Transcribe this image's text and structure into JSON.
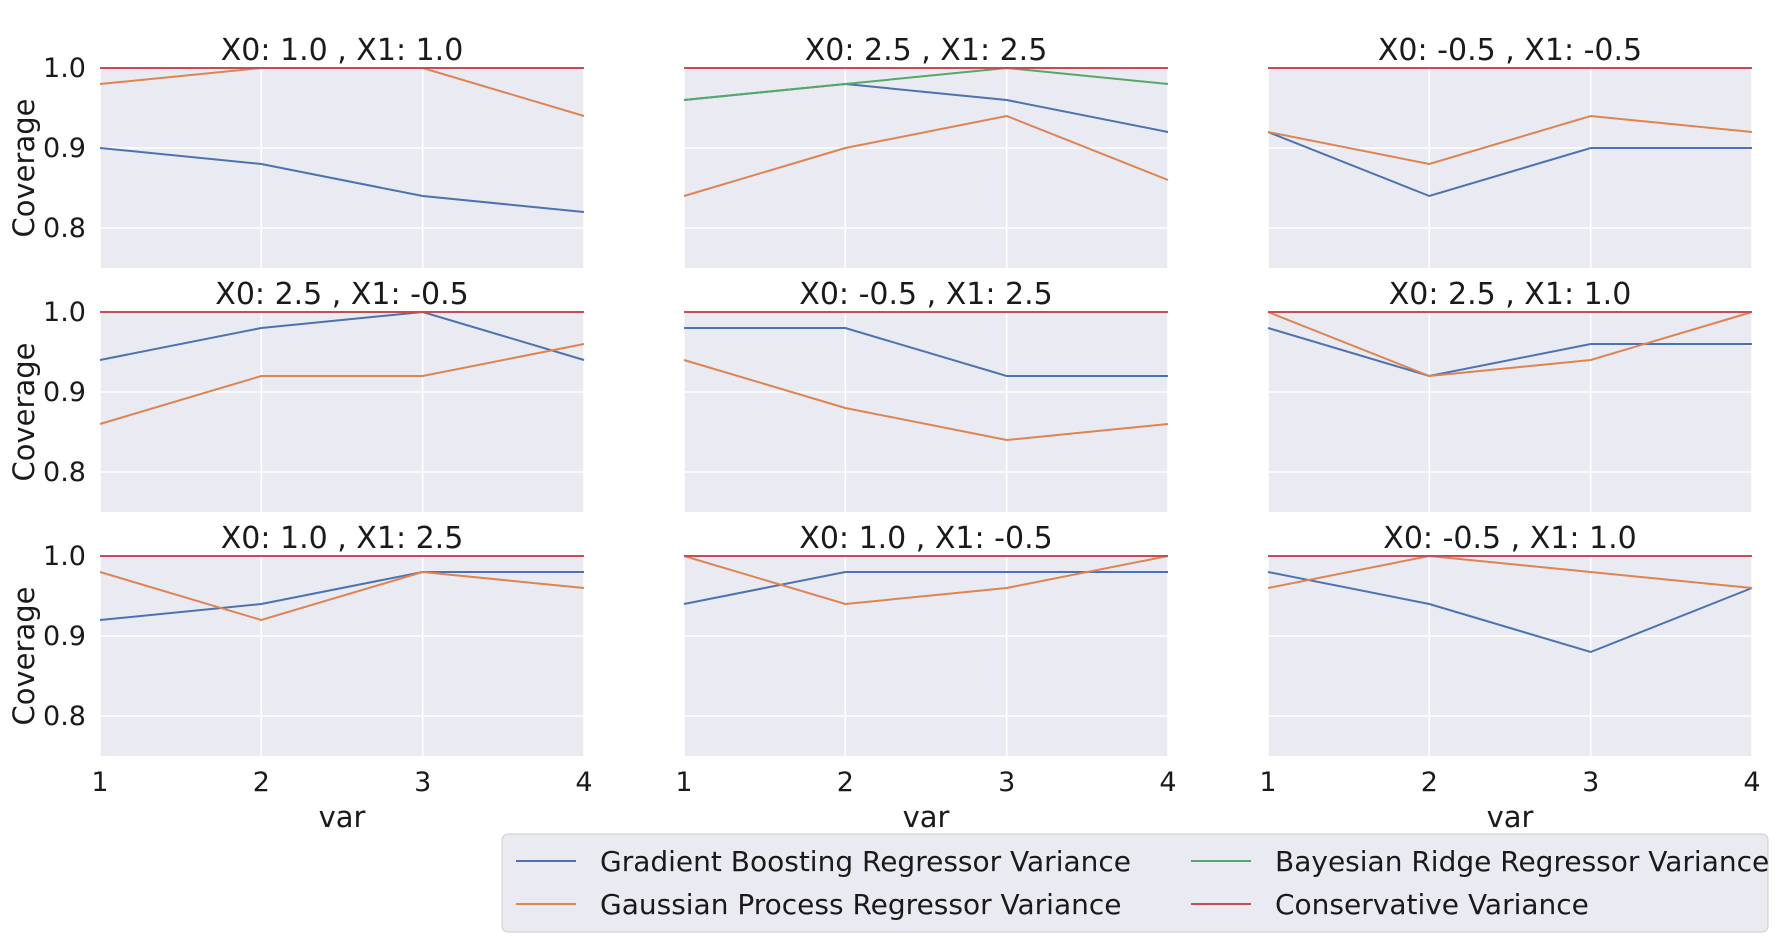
{
  "chart_data": {
    "type": "line",
    "x": [
      1,
      2,
      3,
      4
    ],
    "xlabel": "var",
    "ylabel": "Coverage",
    "ylim": [
      0.75,
      1.0
    ],
    "yticks": [
      "0.8",
      "0.9",
      "1.0"
    ],
    "xticks": [
      "1",
      "2",
      "3",
      "4"
    ],
    "grid": true,
    "legend_position": "bottom-right",
    "legend": [
      {
        "name": "Gradient Boosting Regressor Variance",
        "color": "#4c72b0"
      },
      {
        "name": "Gaussian Process Regressor Variance",
        "color": "#dd8452"
      },
      {
        "name": "Bayesian Ridge Regressor Variance",
        "color": "#55a868"
      },
      {
        "name": "Conservative Variance",
        "color": "#c44e52"
      }
    ],
    "panels": [
      {
        "title": "X0:  1.0 , X1:  1.0",
        "series": [
          {
            "name": "Gradient Boosting Regressor Variance",
            "values": [
              0.9,
              0.88,
              0.84,
              0.82
            ]
          },
          {
            "name": "Gaussian Process Regressor Variance",
            "values": [
              0.98,
              1.0,
              1.0,
              0.94
            ]
          },
          {
            "name": "Bayesian Ridge Regressor Variance",
            "values": [
              1.0,
              1.0,
              1.0,
              1.0
            ]
          },
          {
            "name": "Conservative Variance",
            "values": [
              1.0,
              1.0,
              1.0,
              1.0
            ]
          }
        ]
      },
      {
        "title": "X0:  2.5 , X1:  2.5",
        "series": [
          {
            "name": "Gradient Boosting Regressor Variance",
            "values": [
              0.96,
              0.98,
              0.96,
              0.92
            ]
          },
          {
            "name": "Gaussian Process Regressor Variance",
            "values": [
              0.84,
              0.9,
              0.94,
              0.86
            ]
          },
          {
            "name": "Bayesian Ridge Regressor Variance",
            "values": [
              0.96,
              0.98,
              1.0,
              0.98
            ]
          },
          {
            "name": "Conservative Variance",
            "values": [
              1.0,
              1.0,
              1.0,
              1.0
            ]
          }
        ]
      },
      {
        "title": "X0: -0.5 , X1: -0.5",
        "series": [
          {
            "name": "Gradient Boosting Regressor Variance",
            "values": [
              0.92,
              0.84,
              0.9,
              0.9
            ]
          },
          {
            "name": "Gaussian Process Regressor Variance",
            "values": [
              0.92,
              0.88,
              0.94,
              0.92
            ]
          },
          {
            "name": "Bayesian Ridge Regressor Variance",
            "values": [
              1.0,
              1.0,
              1.0,
              1.0
            ]
          },
          {
            "name": "Conservative Variance",
            "values": [
              1.0,
              1.0,
              1.0,
              1.0
            ]
          }
        ]
      },
      {
        "title": "X0:  2.5 , X1: -0.5",
        "series": [
          {
            "name": "Gradient Boosting Regressor Variance",
            "values": [
              0.94,
              0.98,
              1.0,
              0.94
            ]
          },
          {
            "name": "Gaussian Process Regressor Variance",
            "values": [
              0.86,
              0.92,
              0.92,
              0.96
            ]
          },
          {
            "name": "Bayesian Ridge Regressor Variance",
            "values": [
              1.0,
              1.0,
              1.0,
              1.0
            ]
          },
          {
            "name": "Conservative Variance",
            "values": [
              1.0,
              1.0,
              1.0,
              1.0
            ]
          }
        ]
      },
      {
        "title": "X0: -0.5 , X1:  2.5",
        "series": [
          {
            "name": "Gradient Boosting Regressor Variance",
            "values": [
              0.98,
              0.98,
              0.92,
              0.92
            ]
          },
          {
            "name": "Gaussian Process Regressor Variance",
            "values": [
              0.94,
              0.88,
              0.84,
              0.86
            ]
          },
          {
            "name": "Bayesian Ridge Regressor Variance",
            "values": [
              1.0,
              1.0,
              1.0,
              1.0
            ]
          },
          {
            "name": "Conservative Variance",
            "values": [
              1.0,
              1.0,
              1.0,
              1.0
            ]
          }
        ]
      },
      {
        "title": "X0:  2.5 , X1:  1.0",
        "series": [
          {
            "name": "Gradient Boosting Regressor Variance",
            "values": [
              0.98,
              0.92,
              0.96,
              0.96
            ]
          },
          {
            "name": "Gaussian Process Regressor Variance",
            "values": [
              1.0,
              0.92,
              0.94,
              1.0
            ]
          },
          {
            "name": "Bayesian Ridge Regressor Variance",
            "values": [
              1.0,
              1.0,
              1.0,
              1.0
            ]
          },
          {
            "name": "Conservative Variance",
            "values": [
              1.0,
              1.0,
              1.0,
              1.0
            ]
          }
        ]
      },
      {
        "title": "X0:  1.0 , X1:  2.5",
        "series": [
          {
            "name": "Gradient Boosting Regressor Variance",
            "values": [
              0.92,
              0.94,
              0.98,
              0.98
            ]
          },
          {
            "name": "Gaussian Process Regressor Variance",
            "values": [
              0.98,
              0.92,
              0.98,
              0.96
            ]
          },
          {
            "name": "Bayesian Ridge Regressor Variance",
            "values": [
              1.0,
              1.0,
              1.0,
              1.0
            ]
          },
          {
            "name": "Conservative Variance",
            "values": [
              1.0,
              1.0,
              1.0,
              1.0
            ]
          }
        ]
      },
      {
        "title": "X0:  1.0 , X1: -0.5",
        "series": [
          {
            "name": "Gradient Boosting Regressor Variance",
            "values": [
              0.94,
              0.98,
              0.98,
              0.98
            ]
          },
          {
            "name": "Gaussian Process Regressor Variance",
            "values": [
              1.0,
              0.94,
              0.96,
              1.0
            ]
          },
          {
            "name": "Bayesian Ridge Regressor Variance",
            "values": [
              1.0,
              1.0,
              1.0,
              1.0
            ]
          },
          {
            "name": "Conservative Variance",
            "values": [
              1.0,
              1.0,
              1.0,
              1.0
            ]
          }
        ]
      },
      {
        "title": "X0: -0.5 , X1:  1.0",
        "series": [
          {
            "name": "Gradient Boosting Regressor Variance",
            "values": [
              0.98,
              0.94,
              0.88,
              0.96
            ]
          },
          {
            "name": "Gaussian Process Regressor Variance",
            "values": [
              0.96,
              1.0,
              0.98,
              0.96
            ]
          },
          {
            "name": "Bayesian Ridge Regressor Variance",
            "values": [
              1.0,
              1.0,
              1.0,
              1.0
            ]
          },
          {
            "name": "Conservative Variance",
            "values": [
              1.0,
              1.0,
              1.0,
              1.0
            ]
          }
        ]
      }
    ]
  }
}
